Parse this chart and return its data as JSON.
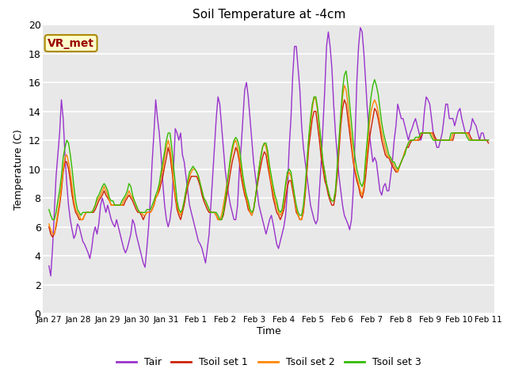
{
  "title": "Soil Temperature at -4cm",
  "xlabel": "Time",
  "ylabel": "Temperature (C)",
  "ylim": [
    0,
    20
  ],
  "bg_color": "#e8e8e8",
  "grid_color": "white",
  "line_colors": {
    "Tair": "#9933cc",
    "Tsoil set 1": "#cc2200",
    "Tsoil set 2": "#ff8800",
    "Tsoil set 3": "#33bb00"
  },
  "annotation_text": "VR_met",
  "annotation_color": "#990000",
  "annotation_bg": "#ffffcc",
  "tick_labels": [
    "Jan 27",
    "Jan 28",
    "Jan 29",
    "Jan 30",
    "Jan 31",
    "Feb 1",
    "Feb 2",
    "Feb 3",
    "Feb 4",
    "Feb 5",
    "Feb 6",
    "Feb 7",
    "Feb 8",
    "Feb 9",
    "Feb 10",
    "Feb 11"
  ],
  "tick_positions": [
    0,
    1,
    2,
    3,
    4,
    5,
    6,
    7,
    8,
    9,
    10,
    11,
    12,
    13,
    14,
    15
  ],
  "yticks": [
    0,
    2,
    4,
    6,
    8,
    10,
    12,
    14,
    16,
    18,
    20
  ],
  "tair": [
    3.3,
    2.6,
    4.5,
    7.0,
    9.5,
    11.0,
    12.5,
    14.8,
    13.5,
    11.0,
    9.0,
    7.5,
    6.5,
    5.8,
    5.2,
    5.5,
    6.2,
    6.0,
    5.5,
    5.0,
    4.8,
    4.5,
    4.2,
    3.8,
    4.5,
    5.5,
    6.0,
    5.5,
    6.2,
    7.5,
    8.0,
    7.5,
    7.0,
    7.5,
    7.0,
    6.5,
    6.2,
    6.0,
    6.5,
    6.0,
    5.5,
    5.0,
    4.5,
    4.2,
    4.5,
    5.0,
    5.5,
    6.5,
    6.2,
    5.5,
    5.0,
    4.5,
    4.0,
    3.5,
    3.2,
    4.5,
    6.0,
    8.0,
    10.5,
    12.5,
    14.8,
    13.5,
    12.5,
    11.0,
    9.0,
    7.5,
    6.5,
    6.0,
    6.5,
    7.5,
    10.0,
    12.8,
    12.5,
    12.0,
    12.5,
    11.0,
    10.5,
    9.5,
    8.5,
    7.5,
    7.0,
    6.5,
    6.0,
    5.5,
    5.0,
    4.8,
    4.5,
    4.0,
    3.5,
    4.5,
    5.5,
    7.5,
    9.5,
    11.5,
    13.5,
    15.0,
    14.5,
    13.0,
    11.5,
    10.0,
    9.0,
    8.2,
    7.5,
    7.0,
    6.5,
    6.5,
    7.5,
    10.0,
    11.5,
    13.5,
    15.5,
    16.0,
    15.0,
    13.5,
    12.0,
    10.5,
    9.5,
    8.5,
    7.5,
    7.0,
    6.5,
    6.0,
    5.5,
    6.0,
    6.5,
    6.8,
    6.2,
    5.5,
    4.8,
    4.5,
    5.0,
    5.5,
    6.0,
    6.8,
    8.5,
    11.5,
    13.5,
    16.5,
    18.5,
    18.5,
    17.0,
    15.5,
    13.0,
    11.5,
    10.5,
    9.5,
    8.5,
    7.5,
    7.0,
    6.5,
    6.2,
    6.5,
    8.5,
    10.5,
    13.0,
    15.5,
    18.5,
    19.5,
    18.5,
    17.0,
    14.5,
    12.5,
    11.0,
    9.5,
    8.5,
    7.5,
    6.8,
    6.5,
    6.2,
    5.8,
    6.5,
    8.5,
    12.0,
    16.0,
    18.5,
    19.8,
    19.5,
    18.0,
    16.0,
    14.0,
    12.5,
    11.5,
    10.5,
    10.8,
    10.5,
    9.5,
    8.5,
    8.2,
    8.8,
    9.0,
    8.5,
    8.5,
    9.5,
    10.5,
    12.0,
    13.0,
    14.5,
    14.0,
    13.5,
    13.5,
    13.0,
    12.5,
    12.0,
    12.5,
    12.8,
    13.2,
    13.5,
    13.0,
    12.5,
    12.0,
    12.5,
    14.0,
    15.0,
    14.8,
    14.5,
    13.5,
    12.5,
    12.0,
    11.5,
    11.5,
    12.0,
    12.5,
    13.5,
    14.5,
    14.5,
    13.5,
    13.5,
    13.5,
    13.0,
    13.5,
    14.0,
    14.2,
    13.5,
    13.0,
    12.5,
    12.5,
    12.5,
    12.8,
    13.5,
    13.2,
    13.0,
    12.5,
    12.0,
    12.5,
    12.5,
    12.0,
    12.0,
    12.0
  ],
  "tsoil1": [
    6.0,
    5.5,
    5.3,
    5.5,
    6.0,
    6.8,
    7.5,
    8.5,
    9.8,
    10.5,
    10.5,
    10.0,
    9.2,
    8.2,
    7.5,
    7.0,
    6.8,
    6.5,
    6.5,
    6.5,
    6.8,
    7.0,
    7.0,
    7.0,
    7.0,
    7.0,
    7.2,
    7.5,
    7.8,
    8.0,
    8.2,
    8.5,
    8.2,
    8.0,
    7.8,
    7.5,
    7.5,
    7.5,
    7.5,
    7.5,
    7.5,
    7.5,
    7.5,
    7.8,
    8.0,
    8.2,
    8.0,
    7.8,
    7.5,
    7.2,
    7.0,
    7.0,
    6.8,
    6.5,
    6.8,
    7.0,
    7.0,
    7.0,
    7.2,
    7.5,
    8.0,
    8.2,
    8.5,
    9.0,
    9.5,
    10.2,
    10.8,
    11.5,
    11.0,
    10.0,
    9.0,
    8.0,
    7.2,
    6.8,
    6.5,
    7.0,
    7.5,
    8.2,
    8.8,
    9.2,
    9.5,
    9.5,
    9.5,
    9.5,
    9.2,
    8.8,
    8.2,
    7.8,
    7.5,
    7.2,
    7.0,
    7.0,
    7.0,
    7.0,
    6.8,
    6.5,
    6.5,
    6.5,
    6.8,
    7.5,
    8.2,
    9.0,
    9.8,
    10.5,
    11.0,
    11.5,
    11.2,
    10.5,
    9.5,
    8.8,
    8.2,
    7.8,
    7.2,
    7.0,
    6.8,
    7.2,
    8.0,
    8.8,
    9.5,
    10.2,
    10.8,
    11.2,
    11.0,
    10.2,
    9.5,
    8.8,
    8.0,
    7.5,
    7.0,
    6.8,
    6.5,
    6.8,
    7.2,
    8.0,
    8.8,
    9.2,
    9.2,
    8.5,
    7.8,
    7.0,
    6.8,
    6.5,
    6.5,
    7.0,
    8.2,
    9.8,
    11.5,
    12.5,
    13.5,
    14.0,
    14.0,
    13.0,
    12.0,
    10.8,
    10.0,
    9.2,
    8.8,
    8.2,
    7.8,
    7.5,
    7.5,
    8.2,
    9.5,
    11.2,
    13.0,
    14.2,
    14.8,
    14.5,
    13.5,
    12.5,
    11.5,
    10.5,
    9.8,
    9.2,
    8.8,
    8.2,
    8.0,
    8.5,
    9.5,
    10.8,
    12.0,
    12.8,
    13.5,
    14.2,
    14.0,
    13.5,
    12.8,
    12.0,
    11.5,
    11.0,
    10.8,
    10.8,
    10.5,
    10.2,
    10.0,
    9.8,
    9.8,
    10.2,
    10.5,
    10.8,
    11.2,
    11.5,
    11.5,
    11.8,
    12.0,
    12.0,
    12.0,
    12.0,
    12.0,
    12.2,
    12.5,
    12.5,
    12.5,
    12.5,
    12.5,
    12.5,
    12.5,
    12.2,
    12.0,
    12.0,
    12.0,
    12.0,
    12.0,
    12.0,
    12.0,
    12.0,
    12.0,
    12.0,
    12.5,
    12.5,
    12.5,
    12.5,
    12.5,
    12.5,
    12.5,
    12.5,
    12.5,
    12.2,
    12.0,
    12.0,
    12.0,
    12.0,
    12.0,
    12.0,
    12.0,
    12.0,
    12.0,
    11.8
  ],
  "tsoil2": [
    6.2,
    5.8,
    5.5,
    5.5,
    6.2,
    7.0,
    7.8,
    8.8,
    10.0,
    10.8,
    11.0,
    10.5,
    9.8,
    8.8,
    7.8,
    7.2,
    7.0,
    6.8,
    6.5,
    6.5,
    6.8,
    7.0,
    7.0,
    7.0,
    7.0,
    7.2,
    7.5,
    7.8,
    8.0,
    8.2,
    8.5,
    8.8,
    8.5,
    8.2,
    7.8,
    7.5,
    7.5,
    7.5,
    7.5,
    7.5,
    7.5,
    7.5,
    7.8,
    8.0,
    8.2,
    8.5,
    8.2,
    8.0,
    7.8,
    7.5,
    7.2,
    7.0,
    7.0,
    6.8,
    6.8,
    7.0,
    7.0,
    7.0,
    7.2,
    7.5,
    8.0,
    8.2,
    8.8,
    9.5,
    10.0,
    10.8,
    11.5,
    12.0,
    11.5,
    10.5,
    9.2,
    8.2,
    7.5,
    7.0,
    6.8,
    7.2,
    7.8,
    8.5,
    9.0,
    9.5,
    9.8,
    10.0,
    10.0,
    9.8,
    9.5,
    9.0,
    8.5,
    8.0,
    7.8,
    7.5,
    7.2,
    7.0,
    7.0,
    7.0,
    6.8,
    6.5,
    6.5,
    6.8,
    7.5,
    8.2,
    9.0,
    9.8,
    10.5,
    11.2,
    11.8,
    12.0,
    11.5,
    10.8,
    10.0,
    9.2,
    8.5,
    8.0,
    7.5,
    7.0,
    6.8,
    7.2,
    8.0,
    9.0,
    10.0,
    10.8,
    11.5,
    11.8,
    11.5,
    10.8,
    9.8,
    9.0,
    8.5,
    7.8,
    7.5,
    7.0,
    6.8,
    7.0,
    7.8,
    8.8,
    9.5,
    9.8,
    9.5,
    8.8,
    8.0,
    7.2,
    6.8,
    6.5,
    6.5,
    7.2,
    8.5,
    10.2,
    12.0,
    13.2,
    14.2,
    15.0,
    14.8,
    14.0,
    12.8,
    11.5,
    10.5,
    9.8,
    9.0,
    8.5,
    8.0,
    7.8,
    7.8,
    8.5,
    10.0,
    11.8,
    13.5,
    15.0,
    15.8,
    15.5,
    14.5,
    13.2,
    12.0,
    10.8,
    10.0,
    9.5,
    9.0,
    8.5,
    8.2,
    8.8,
    10.2,
    11.5,
    13.0,
    14.0,
    14.5,
    14.8,
    14.5,
    14.0,
    13.2,
    12.5,
    12.0,
    11.5,
    11.0,
    10.8,
    10.8,
    10.5,
    10.2,
    10.0,
    9.8,
    10.2,
    10.5,
    10.8,
    11.2,
    11.5,
    11.8,
    12.0,
    12.0,
    12.0,
    12.0,
    12.0,
    12.2,
    12.5,
    12.5,
    12.5,
    12.5,
    12.5,
    12.5,
    12.5,
    12.2,
    12.0,
    12.0,
    12.0,
    12.0,
    12.0,
    12.0,
    12.0,
    12.0,
    12.0,
    12.0,
    12.5,
    12.5,
    12.5,
    12.5,
    12.5,
    12.5,
    12.5,
    12.5,
    12.5,
    12.2,
    12.0,
    12.0,
    12.0,
    12.0,
    12.0,
    12.0,
    12.0,
    12.0,
    12.0,
    12.0,
    12.0
  ],
  "tsoil3": [
    7.2,
    6.8,
    6.5,
    6.5,
    7.0,
    7.8,
    8.5,
    9.5,
    10.8,
    11.5,
    12.0,
    11.8,
    11.0,
    10.0,
    8.8,
    7.8,
    7.2,
    7.0,
    6.8,
    7.0,
    7.0,
    7.0,
    7.0,
    7.0,
    7.0,
    7.2,
    7.5,
    8.0,
    8.2,
    8.5,
    8.8,
    9.0,
    8.8,
    8.5,
    8.0,
    7.8,
    7.8,
    7.5,
    7.5,
    7.5,
    7.5,
    7.8,
    8.0,
    8.2,
    8.5,
    9.0,
    8.8,
    8.2,
    7.8,
    7.5,
    7.2,
    7.0,
    7.0,
    7.0,
    7.0,
    7.2,
    7.2,
    7.2,
    7.5,
    7.8,
    8.2,
    8.5,
    9.0,
    9.8,
    10.5,
    11.2,
    12.0,
    12.5,
    12.5,
    11.5,
    10.2,
    9.0,
    7.8,
    7.2,
    7.0,
    7.2,
    7.8,
    8.5,
    9.2,
    9.8,
    10.0,
    10.2,
    10.0,
    9.8,
    9.5,
    9.0,
    8.5,
    8.0,
    7.8,
    7.5,
    7.2,
    7.0,
    7.0,
    7.0,
    7.0,
    6.8,
    6.5,
    6.5,
    7.0,
    7.8,
    8.8,
    9.8,
    10.8,
    11.5,
    12.0,
    12.2,
    12.0,
    11.5,
    10.5,
    9.5,
    8.8,
    8.2,
    7.8,
    7.2,
    7.0,
    7.2,
    8.0,
    9.0,
    10.0,
    10.8,
    11.5,
    11.8,
    11.8,
    11.2,
    10.2,
    9.5,
    8.8,
    8.2,
    7.8,
    7.2,
    7.0,
    7.2,
    8.0,
    9.0,
    9.8,
    10.0,
    9.8,
    9.0,
    8.2,
    7.5,
    7.0,
    6.8,
    6.8,
    7.5,
    8.8,
    10.5,
    12.2,
    13.5,
    14.5,
    15.0,
    15.0,
    14.2,
    13.0,
    11.8,
    10.5,
    9.8,
    9.0,
    8.5,
    8.0,
    7.8,
    7.8,
    8.5,
    10.2,
    12.0,
    13.8,
    15.5,
    16.5,
    16.8,
    15.8,
    14.5,
    13.2,
    11.8,
    10.8,
    10.0,
    9.5,
    9.0,
    8.8,
    9.2,
    10.8,
    12.2,
    13.8,
    15.0,
    15.8,
    16.2,
    15.8,
    15.2,
    14.2,
    13.2,
    12.5,
    12.0,
    11.5,
    11.0,
    10.8,
    10.5,
    10.5,
    10.2,
    10.0,
    10.2,
    10.5,
    10.8,
    11.0,
    11.5,
    11.8,
    12.0,
    12.0,
    12.0,
    12.2,
    12.2,
    12.2,
    12.5,
    12.5,
    12.5,
    12.5,
    12.5,
    12.5,
    12.2,
    12.0,
    12.0,
    12.0,
    12.0,
    12.0,
    12.0,
    12.0,
    12.0,
    12.0,
    12.0,
    12.5,
    12.5,
    12.5,
    12.5,
    12.5,
    12.5,
    12.5,
    12.5,
    12.5,
    12.2,
    12.0,
    12.0,
    12.0,
    12.0,
    12.0,
    12.0,
    12.0,
    12.0,
    12.0,
    12.0,
    12.0,
    12.0
  ]
}
